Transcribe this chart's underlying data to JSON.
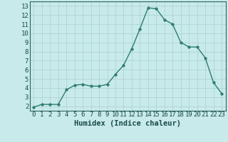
{
  "x": [
    0,
    1,
    2,
    3,
    4,
    5,
    6,
    7,
    8,
    9,
    10,
    11,
    12,
    13,
    14,
    15,
    16,
    17,
    18,
    19,
    20,
    21,
    22,
    23
  ],
  "y": [
    1.9,
    2.2,
    2.2,
    2.2,
    3.8,
    4.3,
    4.4,
    4.2,
    4.2,
    4.4,
    5.5,
    6.5,
    8.3,
    10.5,
    12.8,
    12.7,
    11.5,
    11.0,
    9.0,
    8.5,
    8.5,
    7.3,
    4.6,
    3.4
  ],
  "line_color": "#2e7d6e",
  "marker": "o",
  "marker_size": 2.5,
  "bg_color": "#c8eaea",
  "grid_color": "#aed4d4",
  "xlabel": "Humidex (Indice chaleur)",
  "xlabel_fontsize": 7.5,
  "tick_fontsize": 6.5,
  "xlim": [
    -0.5,
    23.5
  ],
  "ylim": [
    1.5,
    13.5
  ],
  "yticks": [
    2,
    3,
    4,
    5,
    6,
    7,
    8,
    9,
    10,
    11,
    12,
    13
  ],
  "xticks": [
    0,
    1,
    2,
    3,
    4,
    5,
    6,
    7,
    8,
    9,
    10,
    11,
    12,
    13,
    14,
    15,
    16,
    17,
    18,
    19,
    20,
    21,
    22,
    23
  ]
}
